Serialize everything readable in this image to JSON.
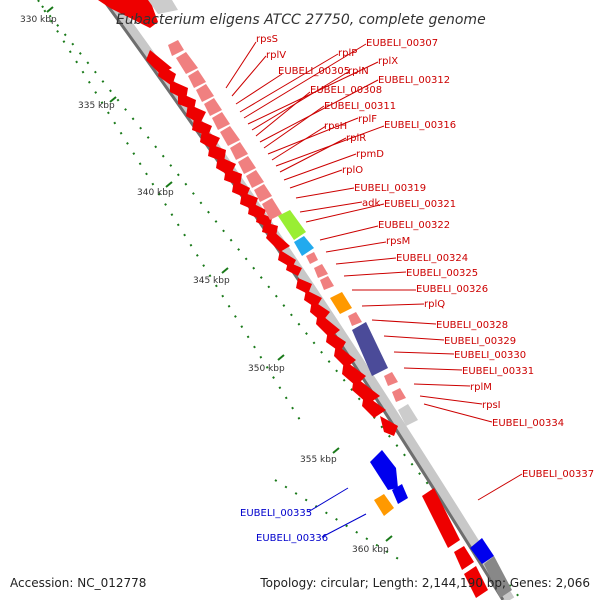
{
  "title": "Eubacterium eligens ATCC 27750, complete genome",
  "footer": {
    "accession": "Accession: NC_012778",
    "summary": "Topology: circular; Length: 2,144,190 bp; Genes: 2,066"
  },
  "ticks": [
    "330 kbp",
    "335 kbp",
    "340 kbp",
    "345 kbp",
    "350 kbp",
    "355 kbp",
    "360 kbp"
  ],
  "colors": {
    "ring_light": "#c8c8c8",
    "ring_dark": "#6e6e6e",
    "tick": "#1a7a1a",
    "gene_red": "#ee0000",
    "gene_pink": "#f08080",
    "gene_green": "#99ee33",
    "gene_cyan": "#22aaee",
    "gene_orange": "#ff9900",
    "gene_purple": "#4b4b99",
    "gene_blue": "#0000ee",
    "gene_grey": "#cccccc",
    "label_red": "#cc0000",
    "label_blue": "#0000cc"
  },
  "labels_red": [
    "rpsS",
    "rplV",
    "EUBELI_00305",
    "rplP",
    "EUBELI_00307",
    "rplX",
    "rplN",
    "EUBELI_00308",
    "EUBELI_00312",
    "EUBELI_00311",
    "rplF",
    "rpsH",
    "EUBELI_00316",
    "rplR",
    "rpmD",
    "rplO",
    "EUBELI_00319",
    "adk",
    "EUBELI_00321",
    "EUBELI_00322",
    "rpsM",
    "EUBELI_00324",
    "EUBELI_00325",
    "EUBELI_00326",
    "rplQ",
    "EUBELI_00328",
    "EUBELI_00329",
    "EUBELI_00330",
    "EUBELI_00331",
    "rplM",
    "rpsI",
    "EUBELI_00334",
    "EUBELI_00337"
  ],
  "labels_blue": [
    "EUBELI_00335",
    "EUBELI_00336"
  ]
}
